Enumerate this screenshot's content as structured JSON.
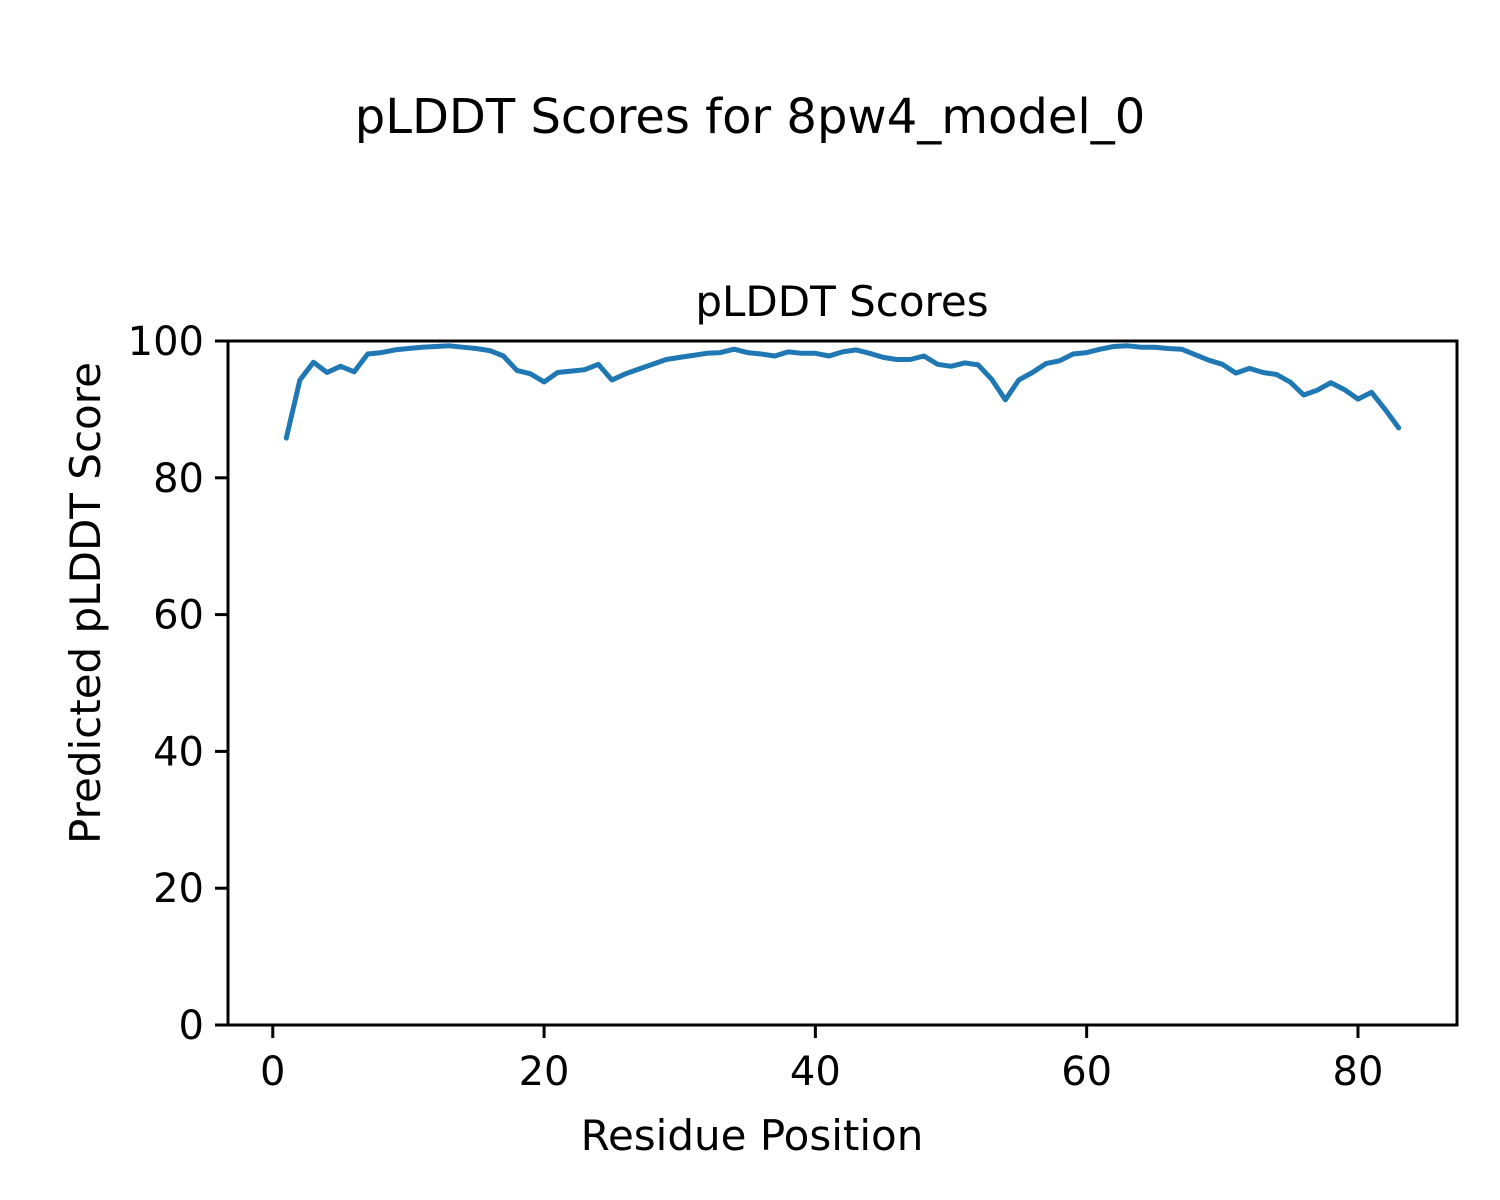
{
  "figure": {
    "suptitle": "pLDDT Scores for 8pw4_model_0",
    "background": "#ffffff"
  },
  "chart_data": {
    "type": "line",
    "title": "pLDDT Scores",
    "xlabel": "Residue Position",
    "ylabel": "Predicted pLDDT Score",
    "line_color": "#1f77b4",
    "axis_color": "#000000",
    "grid": "off",
    "legend": "none",
    "xlim": [
      -3.3,
      87.3
    ],
    "ylim": [
      0,
      100
    ],
    "xticks": [
      0,
      20,
      40,
      60,
      80
    ],
    "yticks": [
      0,
      20,
      40,
      60,
      80,
      100
    ],
    "x": [
      1,
      2,
      3,
      4,
      5,
      6,
      7,
      8,
      9,
      10,
      11,
      12,
      13,
      14,
      15,
      16,
      17,
      18,
      19,
      20,
      21,
      22,
      23,
      24,
      25,
      26,
      27,
      28,
      29,
      30,
      31,
      32,
      33,
      34,
      35,
      36,
      37,
      38,
      39,
      40,
      41,
      42,
      43,
      44,
      45,
      46,
      47,
      48,
      49,
      50,
      51,
      52,
      53,
      54,
      55,
      56,
      57,
      58,
      59,
      60,
      61,
      62,
      63,
      64,
      65,
      66,
      67,
      68,
      69,
      70,
      71,
      72,
      73,
      74,
      75,
      76,
      77,
      78,
      79,
      80,
      81,
      82,
      83
    ],
    "values": [
      85.8,
      94.3,
      96.9,
      95.4,
      96.3,
      95.5,
      98.1,
      98.3,
      98.7,
      98.9,
      99.1,
      99.2,
      99.3,
      99.1,
      98.9,
      98.6,
      97.8,
      95.7,
      95.2,
      94.0,
      95.4,
      95.6,
      95.8,
      96.6,
      94.3,
      95.2,
      95.9,
      96.6,
      97.3,
      97.6,
      97.9,
      98.2,
      98.3,
      98.8,
      98.3,
      98.1,
      97.8,
      98.4,
      98.2,
      98.2,
      97.8,
      98.4,
      98.7,
      98.2,
      97.6,
      97.3,
      97.3,
      97.8,
      96.6,
      96.3,
      96.8,
      96.5,
      94.4,
      91.4,
      94.3,
      95.4,
      96.7,
      97.1,
      98.1,
      98.3,
      98.8,
      99.2,
      99.3,
      99.1,
      99.1,
      98.9,
      98.8,
      98.0,
      97.2,
      96.6,
      95.3,
      96.0,
      95.4,
      95.1,
      94.0,
      92.1,
      92.8,
      93.9,
      92.9,
      91.5,
      92.5,
      90.0,
      87.3
    ]
  }
}
